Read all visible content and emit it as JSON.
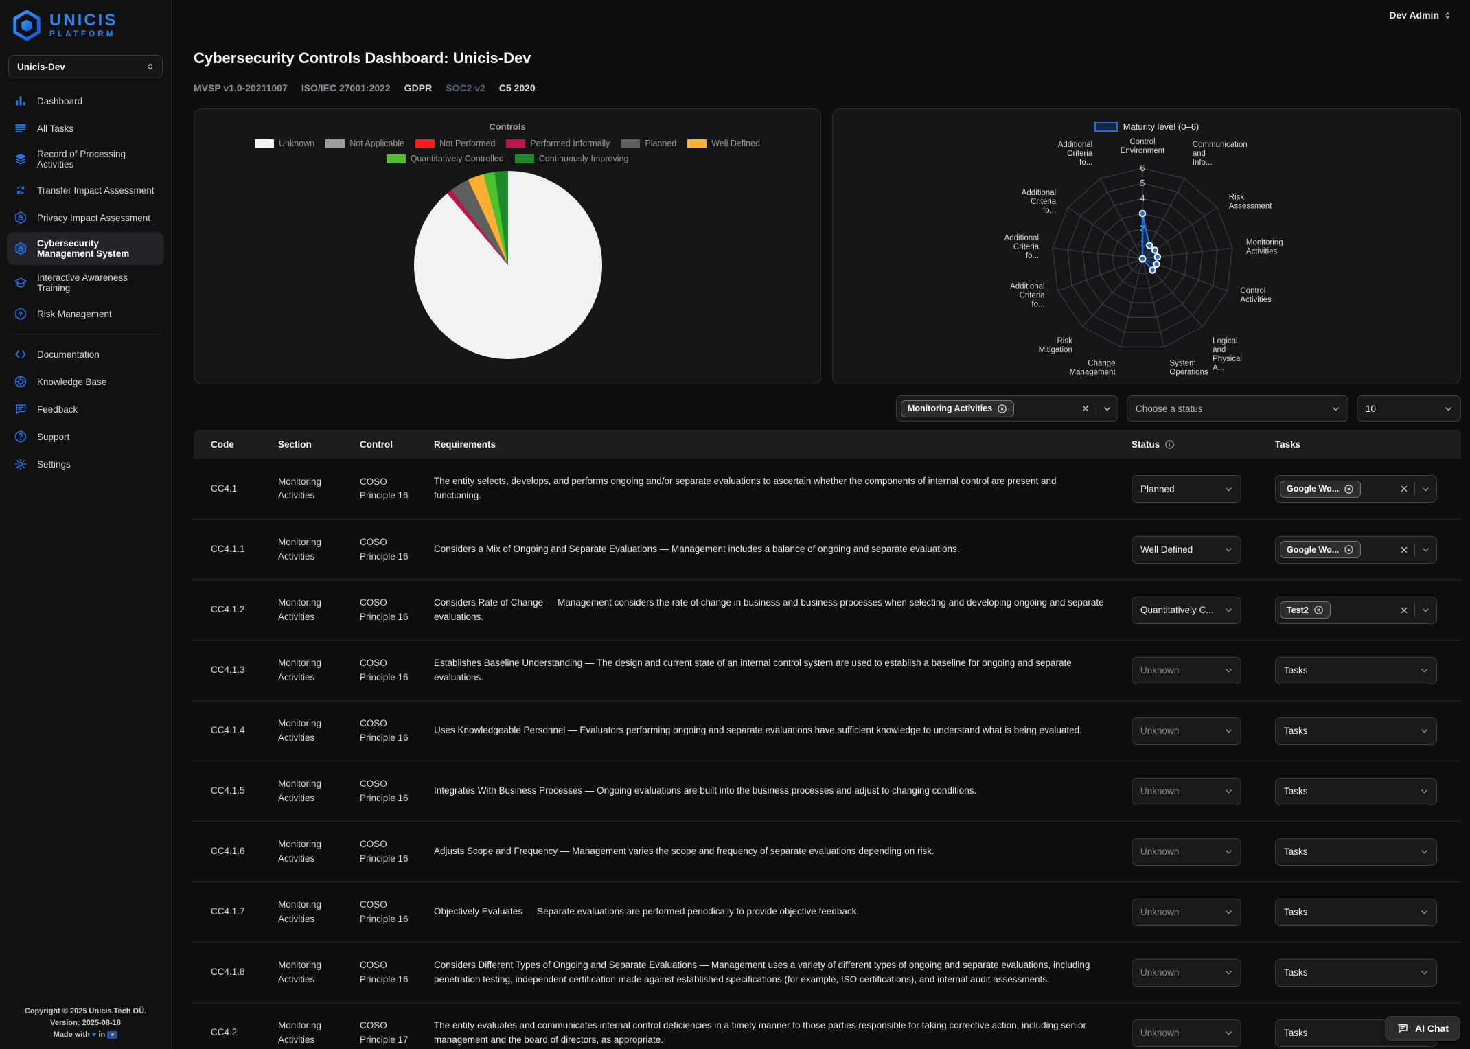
{
  "topbar": {
    "user_menu": "Dev Admin"
  },
  "sidebar": {
    "logo_title": "UNICIS",
    "logo_subtitle": "PLATFORM",
    "workspace": "Unicis-Dev",
    "items": [
      {
        "label": "Dashboard",
        "icon": "bar-chart"
      },
      {
        "label": "All Tasks",
        "icon": "task-list"
      },
      {
        "label": "Record of Processing Activities",
        "icon": "layers"
      },
      {
        "label": "Transfer Impact Assessment",
        "icon": "transfer"
      },
      {
        "label": "Privacy Impact Assessment",
        "icon": "privacy-lock"
      },
      {
        "label": "Cybersecurity Management System",
        "icon": "security-lock",
        "active": true
      },
      {
        "label": "Interactive Awareness Training",
        "icon": "training"
      },
      {
        "label": "Risk Management",
        "icon": "risk-shield"
      }
    ],
    "secondary_items": [
      {
        "label": "Documentation",
        "icon": "code"
      },
      {
        "label": "Knowledge Base",
        "icon": "lifebuoy"
      },
      {
        "label": "Feedback",
        "icon": "feedback-bubble"
      },
      {
        "label": "Support",
        "icon": "help-circle"
      },
      {
        "label": "Settings",
        "icon": "gear"
      }
    ],
    "footer": {
      "line1": "Copyright © 2025 Unicis.Tech OÜ.",
      "line2": "Version: 2025-08-18",
      "line3_prefix": "Made with",
      "line3_suffix": "in"
    }
  },
  "header": {
    "title": "Cybersecurity Controls Dashboard: Unicis-Dev",
    "tabs": [
      {
        "label": "MVSP v1.0-20211007",
        "state": "muted"
      },
      {
        "label": "ISO/IEC 27001:2022",
        "state": "muted"
      },
      {
        "label": "GDPR",
        "state": "bright"
      },
      {
        "label": "SOC2 v2",
        "state": "active"
      },
      {
        "label": "C5 2020",
        "state": "bright"
      }
    ]
  },
  "chart_data": [
    {
      "type": "pie",
      "title": "Controls",
      "legend_position": "top",
      "labels": [
        "Unknown",
        "Not Applicable",
        "Not Performed",
        "Performed Informally",
        "Planned",
        "Well Defined",
        "Quantitatively Controlled",
        "Continuously Improving"
      ],
      "values_percent": [
        88.8,
        0,
        0,
        0.9,
        3.3,
        2.8,
        1.9,
        2.3
      ],
      "colors": [
        "#f2f2f2",
        "#9e9e9e",
        "#ff1a1a",
        "#c2134e",
        "#5f5f5f",
        "#fbb034",
        "#4fc22b",
        "#1f8a2c"
      ]
    },
    {
      "type": "radar",
      "legend": "Maturity level (0–6)",
      "axis_labels": [
        [
          "Control",
          "Environment"
        ],
        [
          "Communication",
          "and",
          "Info..."
        ],
        [
          "Risk",
          "Assessment"
        ],
        [
          "Monitoring",
          "Activities"
        ],
        [
          "Control",
          "Activities"
        ],
        [
          "Logical",
          "and",
          "Physical",
          "A..."
        ],
        [
          "System",
          "Operations"
        ],
        [
          "Change",
          "Management"
        ],
        [
          "Risk",
          "Mitigation"
        ],
        [
          "Additional",
          "Criteria",
          "fo..."
        ],
        [
          "Additional",
          "Criteria",
          "fo..."
        ],
        [
          "Additional",
          "Criteria",
          "fo..."
        ],
        [
          "Additional",
          "Criteria",
          "fo..."
        ]
      ],
      "values": [
        3,
        1,
        1,
        1,
        1,
        1,
        0,
        0,
        0,
        0,
        0,
        0,
        0
      ],
      "range": [
        0,
        6
      ],
      "ticks": [
        1,
        2,
        3,
        4,
        5,
        6
      ],
      "stroke_color": "#1f6fe0",
      "fill_color": "rgba(31,111,224,0.22)",
      "grid_color": "#3d4550"
    }
  ],
  "filters": {
    "section_filter": {
      "selected_tag": "Monitoring Activities"
    },
    "status_filter": {
      "placeholder": "Choose a status"
    },
    "page_size": {
      "value": "10"
    }
  },
  "table": {
    "columns": [
      "Code",
      "Section",
      "Control",
      "Requirements",
      "Status",
      "Tasks"
    ],
    "tasks_placeholder": "Tasks",
    "rows": [
      {
        "code": "CC4.1",
        "section": "Monitoring Activities",
        "control": "COSO Principle 16",
        "requirements": "The entity selects, develops, and performs ongoing and/or separate evaluations to ascertain whether the components of internal control are present and functioning.",
        "status": "Planned",
        "status_known": true,
        "tasks_tag": "Google Wo..."
      },
      {
        "code": "CC4.1.1",
        "section": "Monitoring Activities",
        "control": "COSO Principle 16",
        "requirements": "Considers a Mix of Ongoing and Separate Evaluations — Management includes a balance of ongoing and separate evaluations.",
        "status": "Well Defined",
        "status_known": true,
        "tasks_tag": "Google Wo..."
      },
      {
        "code": "CC4.1.2",
        "section": "Monitoring Activities",
        "control": "COSO Principle 16",
        "requirements": "Considers Rate of Change — Management considers the rate of change in business and business processes when selecting and developing ongoing and separate evaluations.",
        "status": "Quantitatively C...",
        "status_known": true,
        "tasks_tag": "Test2"
      },
      {
        "code": "CC4.1.3",
        "section": "Monitoring Activities",
        "control": "COSO Principle 16",
        "requirements": "Establishes Baseline Understanding — The design and current state of an internal control system are used to establish a baseline for ongoing and separate evaluations.",
        "status": "Unknown",
        "status_known": false,
        "tasks_tag": null
      },
      {
        "code": "CC4.1.4",
        "section": "Monitoring Activities",
        "control": "COSO Principle 16",
        "requirements": "Uses Knowledgeable Personnel — Evaluators performing ongoing and separate evaluations have sufficient knowledge to understand what is being evaluated.",
        "status": "Unknown",
        "status_known": false,
        "tasks_tag": null
      },
      {
        "code": "CC4.1.5",
        "section": "Monitoring Activities",
        "control": "COSO Principle 16",
        "requirements": "Integrates With Business Processes — Ongoing evaluations are built into the business processes and adjust to changing conditions.",
        "status": "Unknown",
        "status_known": false,
        "tasks_tag": null
      },
      {
        "code": "CC4.1.6",
        "section": "Monitoring Activities",
        "control": "COSO Principle 16",
        "requirements": "Adjusts Scope and Frequency — Management varies the scope and frequency of separate evaluations depending on risk.",
        "status": "Unknown",
        "status_known": false,
        "tasks_tag": null
      },
      {
        "code": "CC4.1.7",
        "section": "Monitoring Activities",
        "control": "COSO Principle 16",
        "requirements": "Objectively Evaluates — Separate evaluations are performed periodically to provide objective feedback.",
        "status": "Unknown",
        "status_known": false,
        "tasks_tag": null
      },
      {
        "code": "CC4.1.8",
        "section": "Monitoring Activities",
        "control": "COSO Principle 16",
        "requirements": "Considers Different Types of Ongoing and Separate Evaluations — Management uses a variety of different types of ongoing and separate evaluations, including penetration testing, independent certification made against established specifications (for example, ISO certifications), and internal audit assessments.",
        "status": "Unknown",
        "status_known": false,
        "tasks_tag": null
      },
      {
        "code": "CC4.2",
        "section": "Monitoring Activities",
        "control": "COSO Principle 17",
        "requirements": "The entity evaluates and communicates internal control deficiencies in a timely manner to those parties responsible for taking corrective action, including senior management and the board of directors, as appropriate.",
        "status": "Unknown",
        "status_known": false,
        "tasks_tag": null
      }
    ]
  },
  "ai_chat_label": "AI Chat"
}
